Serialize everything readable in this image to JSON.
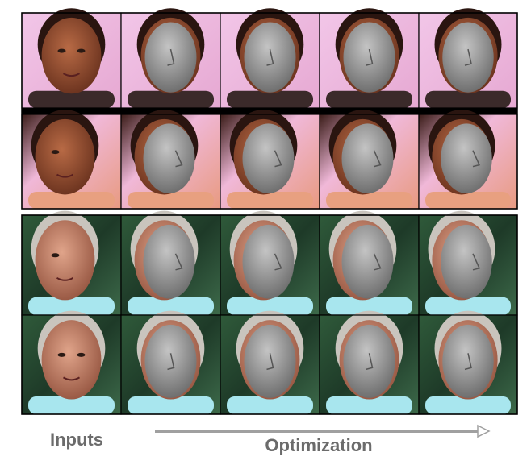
{
  "labels": {
    "inputs": "Inputs",
    "optimization": "Optimization"
  }
}
